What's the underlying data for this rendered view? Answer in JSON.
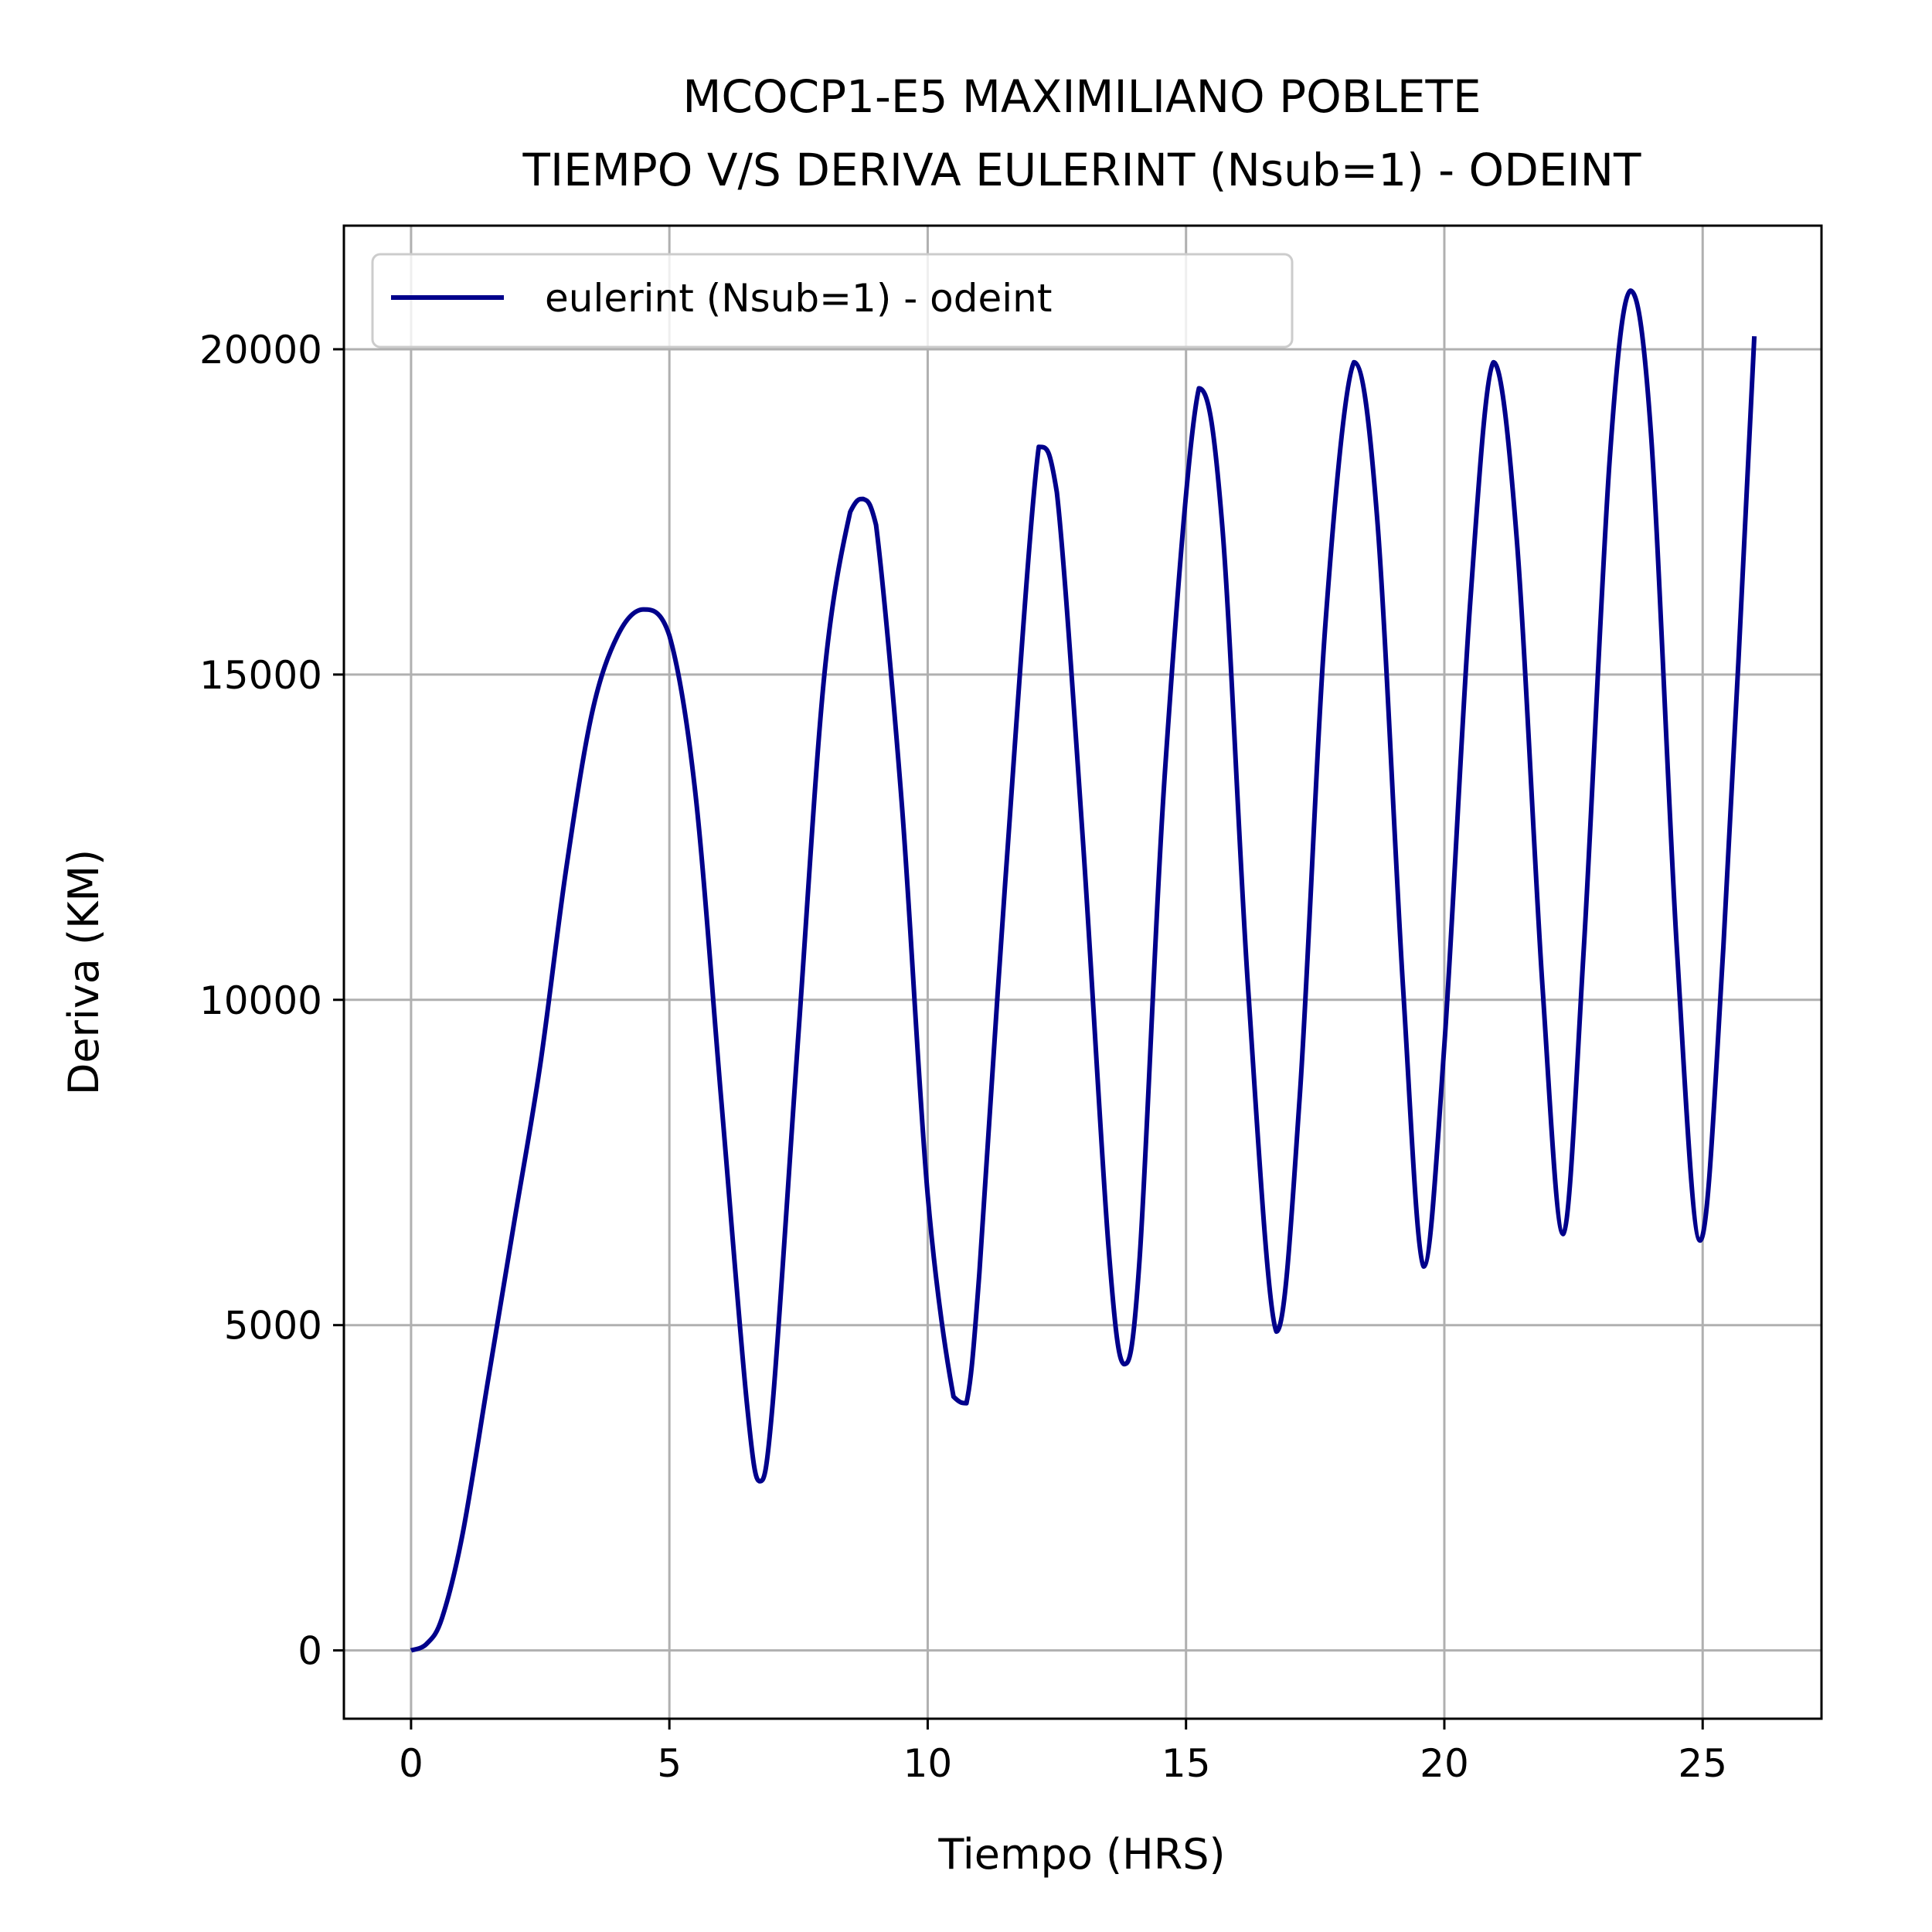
{
  "chart_data": {
    "type": "line",
    "title_lines": [
      "MCOCP1-E5 MAXIMILIANO POBLETE",
      "TIEMPO V/S DERIVA EULERINT (Nsub=1) - ODEINT"
    ],
    "xlabel": "Tiempo (HRS)",
    "ylabel": "Deriva (KM)",
    "xlim": [
      -1.3,
      27.3
    ],
    "ylim": [
      -1050,
      21900
    ],
    "xticks": [
      0,
      5,
      10,
      15,
      20,
      25
    ],
    "yticks": [
      0,
      5000,
      10000,
      15000,
      20000
    ],
    "grid": true,
    "legend_position": "top-left",
    "series": [
      {
        "name": "eulerint (Nsub=1) - odeint",
        "color": "#00008b",
        "x": [
          0,
          0.3,
          0.6,
          1.0,
          1.5,
          2.0,
          2.5,
          3.0,
          3.5,
          4.0,
          4.5,
          5.0,
          5.5,
          6.0,
          6.5,
          6.75,
          7.0,
          7.5,
          8.0,
          8.5,
          8.75,
          9.0,
          9.5,
          10.0,
          10.5,
          10.75,
          11.0,
          11.5,
          12.15,
          12.5,
          13.0,
          13.5,
          13.8,
          14.1,
          14.6,
          15.25,
          15.7,
          16.2,
          16.75,
          17.2,
          17.7,
          18.25,
          18.7,
          19.2,
          19.6,
          20.0,
          20.5,
          20.95,
          21.4,
          21.9,
          22.3,
          22.7,
          23.2,
          23.6,
          24.0,
          24.5,
          24.95,
          25.4,
          26.0
        ],
        "y": [
          0,
          100,
          500,
          1800,
          4200,
          6600,
          9000,
          12000,
          14400,
          15600,
          16000,
          15600,
          13200,
          8500,
          3800,
          2600,
          3800,
          9500,
          15000,
          17500,
          17700,
          17300,
          13000,
          7000,
          3900,
          3800,
          5800,
          11800,
          18500,
          17800,
          12500,
          6200,
          4400,
          6000,
          13600,
          19400,
          17300,
          10200,
          4900,
          8500,
          15800,
          19800,
          17400,
          10200,
          5900,
          9300,
          16100,
          19800,
          17100,
          10200,
          6400,
          10800,
          18300,
          20900,
          18700,
          10800,
          6300,
          10800,
          20200
        ]
      }
    ]
  }
}
